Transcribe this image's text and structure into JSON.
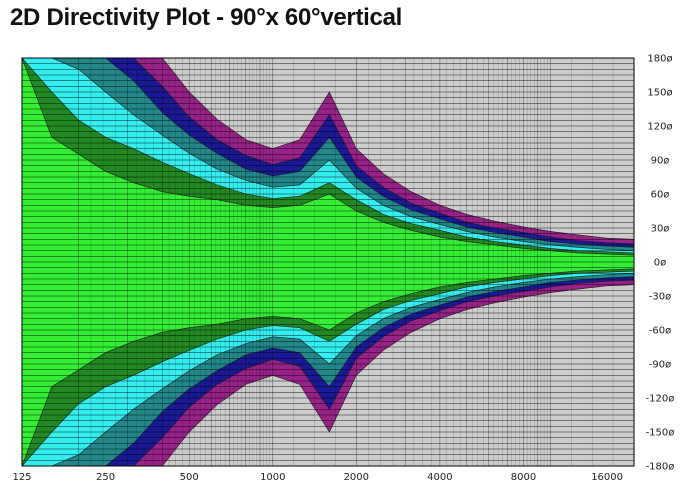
{
  "title": "2D Directivity Plot - 90°x 60°vertical",
  "chart_data": {
    "type": "heatmap",
    "title": "2D Directivity Plot - 90°x 60°vertical",
    "xlabel": "",
    "ylabel": "",
    "x_scale": "log",
    "xlim": [
      125,
      20000
    ],
    "ylim": [
      -180,
      180
    ],
    "x_ticks": [
      "125",
      "250",
      "500",
      "1000",
      "2000",
      "4000",
      "8000",
      "16000"
    ],
    "y_ticks": [
      "180ø",
      "150ø",
      "120ø",
      "90ø",
      "60ø",
      "30ø",
      "0ø",
      "-30ø",
      "-60ø",
      "-90ø",
      "-120ø",
      "-150ø",
      "-180ø"
    ],
    "grid": true,
    "colors": {
      "level_0": "#33ee33",
      "level_1": "#228822",
      "level_2": "#33eeee",
      "level_3": "#228888",
      "level_4": "#1a1a99",
      "level_5": "#992288",
      "level_6": "#cccccc",
      "grid": "#000000"
    },
    "contour_halfwidth_deg": {
      "frequency_hz": [
        125,
        160,
        200,
        250,
        315,
        400,
        500,
        630,
        800,
        1000,
        1250,
        1600,
        2000,
        2500,
        3150,
        4000,
        5000,
        6300,
        8000,
        10000,
        12500,
        16000,
        20000
      ],
      "level_0": [
        180,
        110,
        95,
        80,
        70,
        62,
        58,
        55,
        50,
        48,
        50,
        60,
        45,
        35,
        28,
        22,
        18,
        15,
        12,
        10,
        8,
        7,
        6
      ],
      "level_1": [
        180,
        150,
        125,
        110,
        100,
        88,
        78,
        68,
        60,
        56,
        58,
        70,
        55,
        42,
        34,
        28,
        22,
        18,
        15,
        12,
        10,
        9,
        8
      ],
      "level_2": [
        180,
        180,
        170,
        150,
        130,
        112,
        96,
        82,
        72,
        66,
        68,
        90,
        65,
        50,
        40,
        33,
        27,
        22,
        18,
        15,
        13,
        11,
        10
      ],
      "level_3": [
        180,
        180,
        180,
        180,
        160,
        132,
        112,
        96,
        82,
        76,
        80,
        110,
        75,
        58,
        46,
        38,
        31,
        26,
        22,
        18,
        16,
        14,
        13
      ],
      "level_4": [
        180,
        180,
        180,
        180,
        180,
        155,
        128,
        108,
        94,
        86,
        92,
        130,
        85,
        66,
        52,
        43,
        35,
        30,
        26,
        22,
        19,
        17,
        16
      ],
      "level_5": [
        180,
        180,
        180,
        180,
        180,
        180,
        150,
        126,
        108,
        100,
        108,
        150,
        100,
        78,
        62,
        50,
        42,
        36,
        31,
        27,
        24,
        21,
        20
      ]
    }
  }
}
